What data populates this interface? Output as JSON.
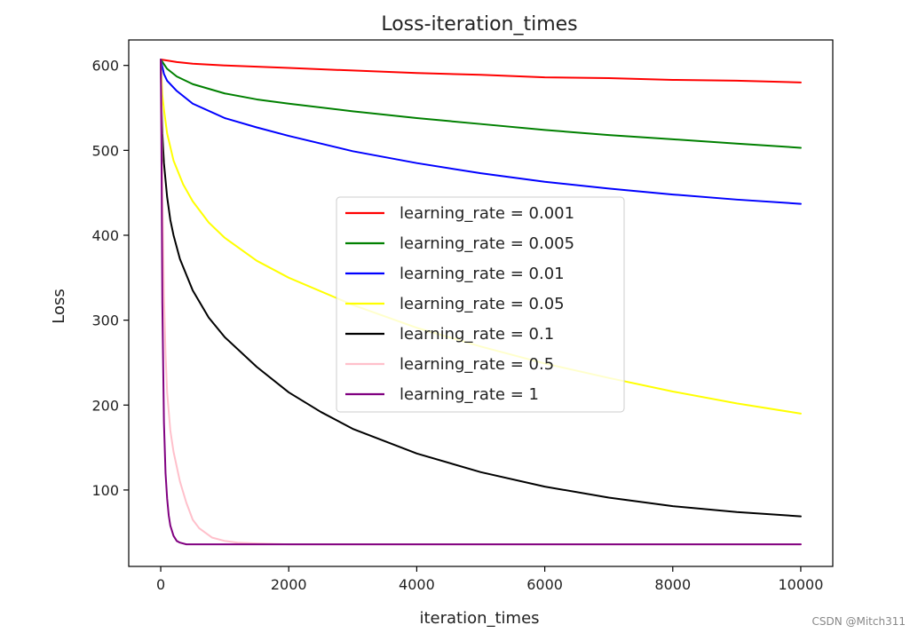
{
  "watermark": "CSDN @Mitch311",
  "chart_data": {
    "type": "line",
    "title": "Loss-iteration_times",
    "xlabel": "iteration_times",
    "ylabel": "Loss",
    "xlim": [
      -500,
      10500
    ],
    "ylim": [
      10,
      630
    ],
    "xticks": [
      0,
      2000,
      4000,
      6000,
      8000,
      10000
    ],
    "yticks": [
      100,
      200,
      300,
      400,
      500,
      600
    ],
    "grid": false,
    "legend_position": "center-right",
    "series": [
      {
        "name": "learning_rate = 0.001",
        "color": "#ff0000",
        "x": [
          0,
          250,
          500,
          1000,
          2000,
          3000,
          4000,
          5000,
          6000,
          7000,
          8000,
          9000,
          10000
        ],
        "y": [
          607,
          604,
          602,
          600,
          597,
          594,
          591,
          589,
          586,
          585,
          583,
          582,
          580
        ]
      },
      {
        "name": "learning_rate = 0.005",
        "color": "#008000",
        "x": [
          0,
          100,
          250,
          500,
          1000,
          1500,
          2000,
          3000,
          4000,
          5000,
          6000,
          7000,
          8000,
          9000,
          10000
        ],
        "y": [
          607,
          596,
          587,
          578,
          567,
          560,
          555,
          546,
          538,
          531,
          524,
          518,
          513,
          508,
          503
        ]
      },
      {
        "name": "learning_rate = 0.01",
        "color": "#0000ff",
        "x": [
          0,
          50,
          100,
          250,
          500,
          1000,
          1500,
          2000,
          3000,
          4000,
          5000,
          6000,
          7000,
          8000,
          9000,
          10000
        ],
        "y": [
          607,
          590,
          582,
          570,
          555,
          538,
          527,
          517,
          499,
          485,
          473,
          463,
          455,
          448,
          442,
          437
        ]
      },
      {
        "name": "learning_rate = 0.05",
        "color": "#ffff00",
        "x": [
          0,
          25,
          50,
          100,
          200,
          350,
          500,
          750,
          1000,
          1500,
          2000,
          3000,
          4000,
          5000,
          6000,
          7000,
          8000,
          9000,
          10000
        ],
        "y": [
          607,
          565,
          548,
          520,
          488,
          460,
          440,
          415,
          397,
          370,
          350,
          318,
          291,
          269,
          249,
          232,
          216,
          202,
          190
        ]
      },
      {
        "name": "learning_rate = 0.1",
        "color": "#000000",
        "x": [
          0,
          10,
          25,
          50,
          100,
          150,
          200,
          300,
          500,
          750,
          1000,
          1500,
          2000,
          2500,
          3000,
          4000,
          5000,
          6000,
          7000,
          8000,
          9000,
          10000
        ],
        "y": [
          607,
          560,
          520,
          485,
          445,
          418,
          400,
          372,
          335,
          303,
          280,
          245,
          215,
          192,
          172,
          143,
          121,
          104,
          91,
          81,
          74,
          69
        ]
      },
      {
        "name": "learning_rate = 0.5",
        "color": "#ffc0cb",
        "x": [
          0,
          10,
          25,
          50,
          75,
          100,
          150,
          200,
          300,
          400,
          500,
          600,
          800,
          1000,
          1200,
          1500,
          2000,
          3000,
          5000,
          10000
        ],
        "y": [
          607,
          570,
          450,
          330,
          260,
          215,
          170,
          145,
          110,
          85,
          65,
          55,
          44,
          40,
          38,
          37,
          36,
          36,
          36,
          36
        ]
      },
      {
        "name": "learning_rate = 1",
        "color": "#800080",
        "x": [
          0,
          10,
          25,
          50,
          75,
          100,
          125,
          150,
          200,
          250,
          300,
          400,
          500,
          1000,
          2000,
          5000,
          10000
        ],
        "y": [
          607,
          520,
          320,
          180,
          120,
          90,
          70,
          58,
          46,
          40,
          38,
          36,
          36,
          36,
          36,
          36,
          36
        ]
      }
    ]
  }
}
